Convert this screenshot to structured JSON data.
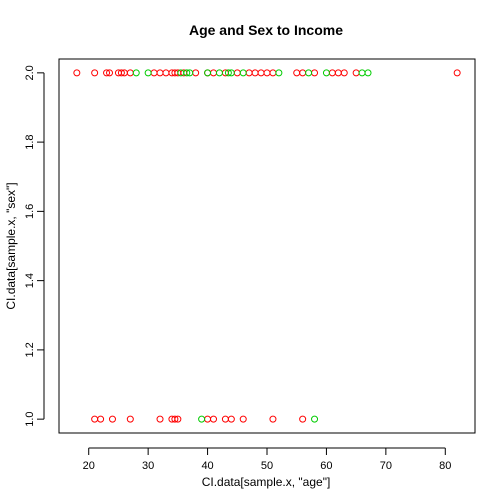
{
  "chart_data": {
    "type": "scatter",
    "title": "Age and Sex to Income",
    "xlabel": "CI.data[sample.x, \"age\"]",
    "ylabel": "CI.data[sample.x, \"sex\"]",
    "xlim": [
      15,
      85
    ],
    "ylim": [
      0.96,
      2.04
    ],
    "xticks": [
      20,
      30,
      40,
      50,
      60,
      70,
      80
    ],
    "yticks": [
      1.0,
      1.2,
      1.4,
      1.6,
      1.8,
      2.0
    ],
    "xtick_labels": [
      "20",
      "30",
      "40",
      "50",
      "60",
      "70",
      "80"
    ],
    "ytick_labels": [
      "1.0",
      "1.2",
      "1.4",
      "1.6",
      "1.8",
      "2.0"
    ],
    "grid": false,
    "series": [
      {
        "color": "#ff0000",
        "points": [
          [
            18,
            2.0
          ],
          [
            21,
            2.0
          ],
          [
            23,
            2.0
          ],
          [
            23.5,
            2.0
          ],
          [
            25,
            2.0
          ],
          [
            25.5,
            2.0
          ],
          [
            26,
            2.0
          ],
          [
            27,
            2.0
          ],
          [
            31,
            2.0
          ],
          [
            32,
            2.0
          ],
          [
            33,
            2.0
          ],
          [
            34,
            2.0
          ],
          [
            34.5,
            2.0
          ],
          [
            35,
            2.0
          ],
          [
            36,
            2.0
          ],
          [
            38,
            2.0
          ],
          [
            40,
            2.0
          ],
          [
            41,
            2.0
          ],
          [
            43,
            2.0
          ],
          [
            45,
            2.0
          ],
          [
            47,
            2.0
          ],
          [
            48,
            2.0
          ],
          [
            49,
            2.0
          ],
          [
            50,
            2.0
          ],
          [
            51,
            2.0
          ],
          [
            55,
            2.0
          ],
          [
            56,
            2.0
          ],
          [
            58,
            2.0
          ],
          [
            61,
            2.0
          ],
          [
            62,
            2.0
          ],
          [
            63,
            2.0
          ],
          [
            65,
            2.0
          ],
          [
            82,
            2.0
          ],
          [
            21,
            1.0
          ],
          [
            22,
            1.0
          ],
          [
            24,
            1.0
          ],
          [
            27,
            1.0
          ],
          [
            32,
            1.0
          ],
          [
            34,
            1.0
          ],
          [
            34.5,
            1.0
          ],
          [
            35,
            1.0
          ],
          [
            40,
            1.0
          ],
          [
            41,
            1.0
          ],
          [
            43,
            1.0
          ],
          [
            44,
            1.0
          ],
          [
            46,
            1.0
          ],
          [
            51,
            1.0
          ],
          [
            56,
            1.0
          ]
        ]
      },
      {
        "color": "#00cc00",
        "points": [
          [
            28,
            2.0
          ],
          [
            30,
            2.0
          ],
          [
            35.5,
            2.0
          ],
          [
            36.5,
            2.0
          ],
          [
            37,
            2.0
          ],
          [
            40,
            2.0
          ],
          [
            42,
            2.0
          ],
          [
            43.5,
            2.0
          ],
          [
            44,
            2.0
          ],
          [
            46,
            2.0
          ],
          [
            52,
            2.0
          ],
          [
            57,
            2.0
          ],
          [
            60,
            2.0
          ],
          [
            66,
            2.0
          ],
          [
            67,
            2.0
          ],
          [
            39,
            1.0
          ],
          [
            58,
            1.0
          ]
        ]
      }
    ]
  }
}
